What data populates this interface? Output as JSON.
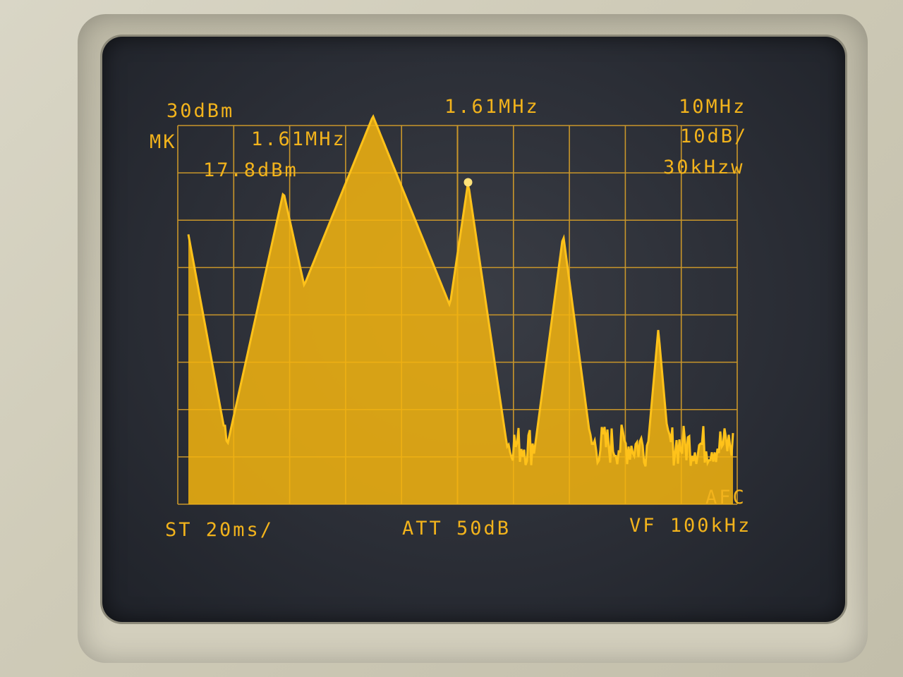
{
  "readouts": {
    "ref_level": "30dBm",
    "center_freq": "1.61MHz",
    "span": "10MHz",
    "marker_label": "MK",
    "marker_freq": "1.61MHz",
    "marker_level": "17.8dBm",
    "scale": "10dB/",
    "rbw": "30kHzw",
    "sweep_time": "ST 20ms/",
    "attenuation": "ATT 50dB",
    "video_filter": "VF 100kHz",
    "afc": "AFC"
  },
  "colors": {
    "trace": "#f5b50f",
    "grid": "#c9962a",
    "screen": "#2b2e36"
  },
  "spectrum": {
    "peaks_div": [
      {
        "x_div": 0.0,
        "level_div": 5.7
      },
      {
        "x_div": 1.7,
        "level_div": 6.6
      },
      {
        "x_div": 3.3,
        "level_div": 8.2
      },
      {
        "x_div": 5.0,
        "level_div": 6.8
      },
      {
        "x_div": 6.7,
        "level_div": 5.7
      },
      {
        "x_div": 8.4,
        "level_div": 3.7
      }
    ],
    "marker_div": {
      "x_div": 5.0,
      "level_div": 6.8
    },
    "noise_floor_div": 0.8
  }
}
